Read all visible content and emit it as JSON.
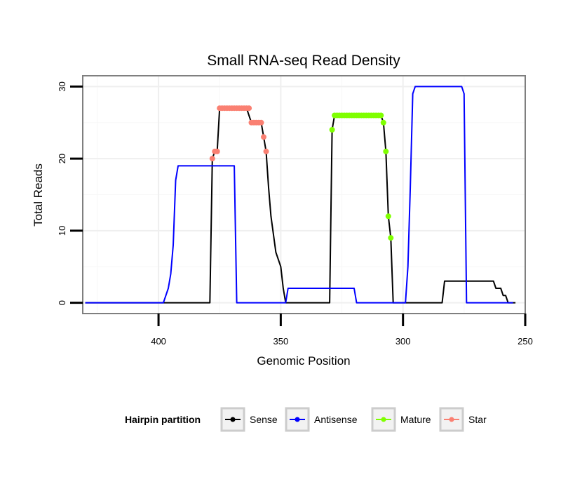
{
  "chart_data": {
    "type": "line",
    "title": "Small RNA-seq Read Density",
    "xlabel": "Genomic Position",
    "ylabel": "Total Reads",
    "x_reversed": true,
    "xlim": [
      431,
      250
    ],
    "ylim": [
      -1.5,
      31.5
    ],
    "x_ticks": [
      400,
      350,
      300,
      250
    ],
    "y_ticks": [
      0,
      10,
      20,
      30
    ],
    "grid": true,
    "legend": {
      "title": "Hairpin partition",
      "placement": "bottom",
      "entries": [
        {
          "name": "Sense",
          "color": "#000000"
        },
        {
          "name": "Antisense",
          "color": "#0000ff"
        },
        {
          "name": "Mature",
          "color": "#7fff00"
        },
        {
          "name": "Star",
          "color": "#fa8072"
        }
      ]
    },
    "series": [
      {
        "name": "Sense",
        "color": "#000000",
        "x": [
          430,
          379,
          378,
          377,
          376,
          375,
          374,
          372,
          370,
          368,
          366,
          364,
          362,
          360,
          358,
          357,
          356,
          355,
          354,
          352,
          350,
          349,
          348,
          347,
          346,
          345,
          344,
          330,
          329,
          328,
          326,
          324,
          322,
          320,
          318,
          316,
          314,
          312,
          310,
          309,
          308,
          307,
          306,
          305,
          304,
          303,
          284,
          283,
          282,
          280,
          270,
          263,
          262,
          260,
          259,
          258,
          257,
          256,
          254
        ],
        "y": [
          0,
          0,
          20,
          21,
          21,
          27,
          27,
          27,
          27,
          27,
          27,
          27,
          25,
          25,
          25,
          23,
          21,
          16,
          12,
          7,
          5,
          2,
          0,
          0,
          0,
          0,
          0,
          0,
          24,
          26,
          26,
          26,
          26,
          26,
          26,
          26,
          26,
          26,
          26,
          26,
          25,
          21,
          12,
          9,
          0,
          0,
          0,
          3,
          3,
          3,
          3,
          3,
          2,
          2,
          1,
          1,
          0,
          0,
          0
        ]
      },
      {
        "name": "Antisense",
        "color": "#0000ff",
        "x": [
          430,
          398,
          396,
          395,
          394,
          393,
          392,
          391,
          388,
          380,
          370,
          369,
          368,
          360,
          350,
          348,
          347,
          345,
          330,
          320,
          319,
          318,
          310,
          299,
          298,
          297,
          296,
          295,
          294,
          290,
          280,
          276,
          275,
          274,
          273,
          265,
          255
        ],
        "y": [
          0,
          0,
          2,
          4,
          8,
          17,
          19,
          19,
          19,
          19,
          19,
          19,
          0,
          0,
          0,
          0,
          2,
          2,
          2,
          2,
          0,
          0,
          0,
          0,
          5,
          16,
          29,
          30,
          30,
          30,
          30,
          30,
          29,
          0,
          0,
          0,
          0
        ]
      },
      {
        "name": "Mature",
        "color": "#7fff00",
        "x": [
          329,
          328,
          327,
          326,
          325,
          324,
          323,
          322,
          321,
          320,
          319,
          318,
          317,
          316,
          315,
          314,
          313,
          312,
          311,
          310,
          309,
          308,
          307,
          306,
          305
        ],
        "y": [
          24,
          26,
          26,
          26,
          26,
          26,
          26,
          26,
          26,
          26,
          26,
          26,
          26,
          26,
          26,
          26,
          26,
          26,
          26,
          26,
          26,
          25,
          21,
          12,
          9
        ]
      },
      {
        "name": "Star",
        "color": "#fa8072",
        "x": [
          378,
          377,
          376,
          375,
          374,
          373,
          372,
          371,
          370,
          369,
          368,
          367,
          366,
          365,
          364,
          363,
          362,
          361,
          360,
          359,
          358,
          357,
          356
        ],
        "y": [
          20,
          21,
          21,
          27,
          27,
          27,
          27,
          27,
          27,
          27,
          27,
          27,
          27,
          27,
          27,
          27,
          25,
          25,
          25,
          25,
          25,
          23,
          21
        ]
      }
    ]
  }
}
